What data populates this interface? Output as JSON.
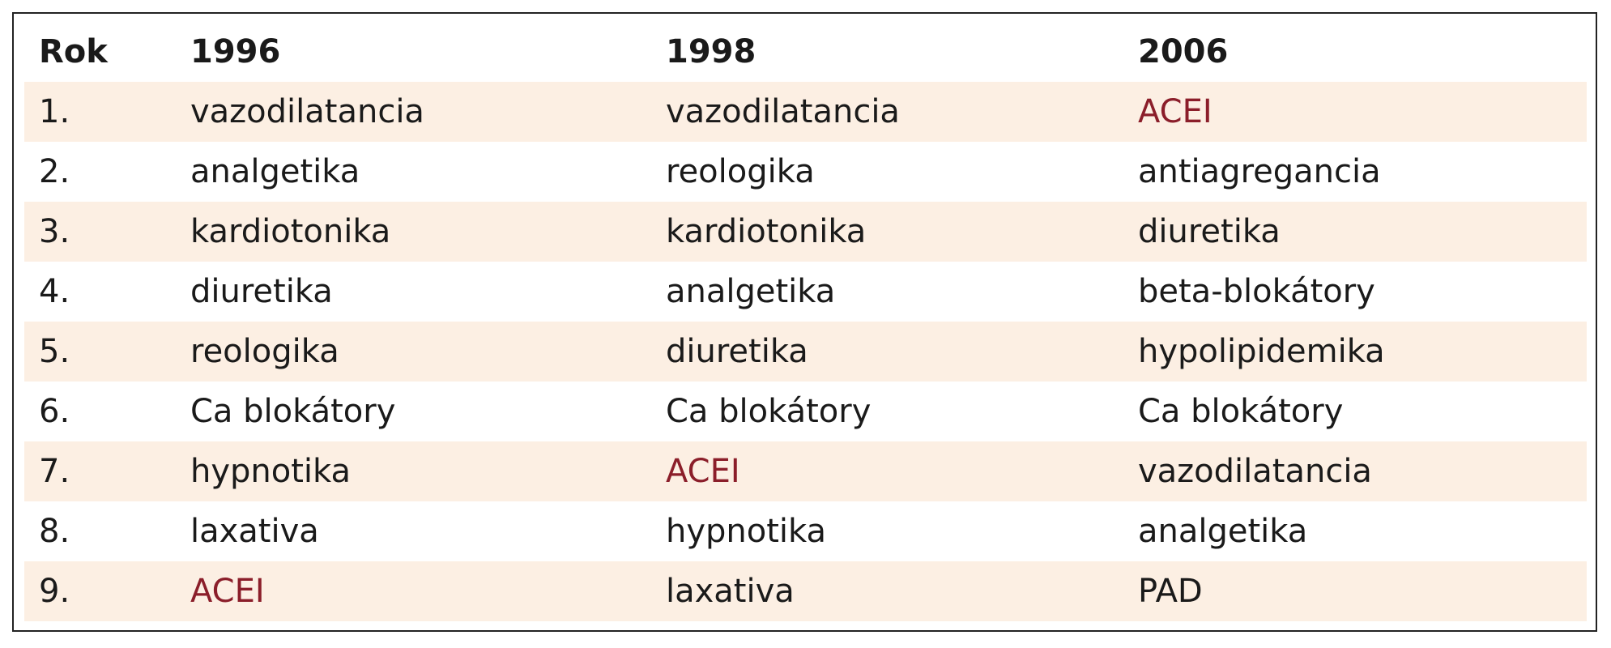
{
  "table": {
    "header": [
      "Rok",
      "1996",
      "1998",
      "2006"
    ],
    "rows": [
      [
        "1.",
        "vazodilatancia",
        "vazodilatancia",
        "ACEI"
      ],
      [
        "2.",
        "analgetika",
        "reologika",
        "antiagregancia"
      ],
      [
        "3.",
        "kardiotonika",
        "kardiotonika",
        "diuretika"
      ],
      [
        "4.",
        "diuretika",
        "analgetika",
        "beta-blokátory"
      ],
      [
        "5.",
        "reologika",
        "diuretika",
        "hypolipidemika"
      ],
      [
        "6.",
        "Ca blokátory",
        "Ca blokátory",
        "Ca blokátory"
      ],
      [
        "7.",
        "hypnotika",
        "ACEI",
        "vazodilatancia"
      ],
      [
        "8.",
        "laxativa",
        "hypnotika",
        "analgetika"
      ],
      [
        "9.",
        "ACEI",
        "laxativa",
        "PAD"
      ]
    ],
    "band_color": "#fcefe3",
    "accent_color": "#8b1e2a"
  }
}
